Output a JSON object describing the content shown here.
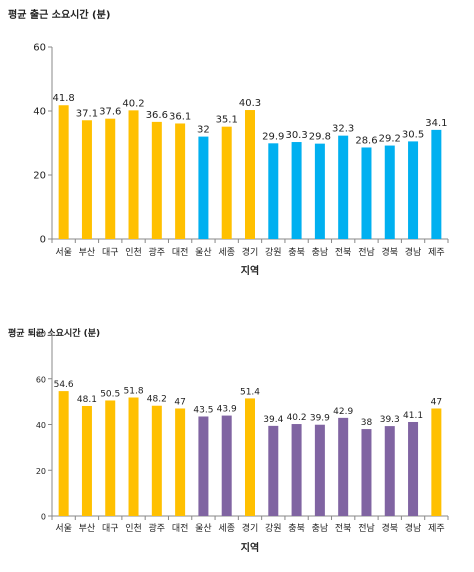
{
  "chart_data": [
    {
      "type": "bar",
      "title": "평균 출근 소요시간 (분)",
      "xlabel": "지역",
      "ylabel": "",
      "ylim": [
        0,
        60
      ],
      "yticks": [
        0,
        20,
        40,
        60
      ],
      "grid": false,
      "categories": [
        "서울",
        "부산",
        "대구",
        "인천",
        "광주",
        "대전",
        "울산",
        "세종",
        "경기",
        "강원",
        "충북",
        "충남",
        "전북",
        "전남",
        "경북",
        "경남",
        "제주"
      ],
      "values": [
        41.8,
        37.1,
        37.6,
        40.2,
        36.6,
        36.1,
        32,
        35.1,
        40.3,
        29.9,
        30.3,
        29.8,
        32.3,
        28.6,
        29.2,
        30.5,
        34.1
      ],
      "value_labels": [
        "41.8",
        "37.1",
        "37.6",
        "40.2",
        "36.6",
        "36.1",
        "32",
        "35.1",
        "40.3",
        "29.9",
        "30.3",
        "29.8",
        "32.3",
        "28.6",
        "29.2",
        "30.5",
        "34.1"
      ],
      "bar_colors": [
        "#FFC000",
        "#FFC000",
        "#FFC000",
        "#FFC000",
        "#FFC000",
        "#FFC000",
        "#00B0F0",
        "#FFC000",
        "#FFC000",
        "#00B0F0",
        "#00B0F0",
        "#00B0F0",
        "#00B0F0",
        "#00B0F0",
        "#00B0F0",
        "#00B0F0",
        "#00B0F0"
      ]
    },
    {
      "type": "bar",
      "title": "평균 퇴근 소요시간 (분)",
      "xlabel": "지역",
      "ylabel": "",
      "ylim": [
        0,
        80
      ],
      "yticks": [
        0,
        20,
        40,
        60,
        80
      ],
      "grid": false,
      "categories": [
        "서울",
        "부산",
        "대구",
        "인천",
        "광주",
        "대전",
        "울산",
        "세종",
        "경기",
        "강원",
        "충북",
        "충남",
        "전북",
        "전남",
        "경북",
        "경남",
        "제주"
      ],
      "values": [
        54.6,
        48.1,
        50.5,
        51.8,
        48.2,
        47,
        43.5,
        43.9,
        51.4,
        39.4,
        40.2,
        39.9,
        42.9,
        38,
        39.3,
        41.1,
        47
      ],
      "value_labels": [
        "54.6",
        "48.1",
        "50.5",
        "51.8",
        "48.2",
        "47",
        "43.5",
        "43.9",
        "51.4",
        "39.4",
        "40.2",
        "39.9",
        "42.9",
        "38",
        "39.3",
        "41.1",
        "47"
      ],
      "bar_colors": [
        "#FFC000",
        "#FFC000",
        "#FFC000",
        "#FFC000",
        "#FFC000",
        "#FFC000",
        "#8064A2",
        "#8064A2",
        "#FFC000",
        "#8064A2",
        "#8064A2",
        "#8064A2",
        "#8064A2",
        "#8064A2",
        "#8064A2",
        "#8064A2",
        "#FFC000"
      ]
    }
  ]
}
